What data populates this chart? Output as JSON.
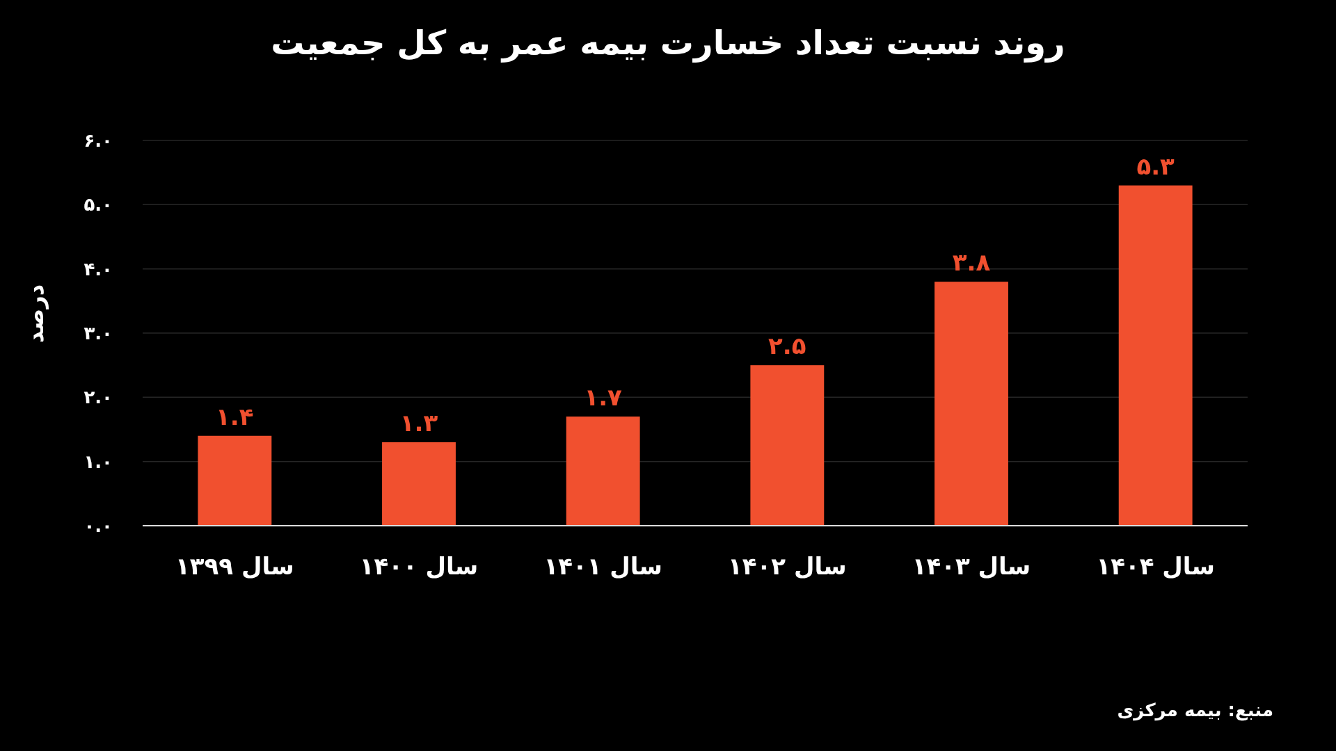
{
  "chart_data": {
    "type": "bar",
    "title": "روند نسبت تعداد خسارت بیمه عمر به کل جمعیت",
    "ylabel": "درصد",
    "categories": [
      "سال ۱۳۹۹",
      "سال ۱۴۰۰",
      "سال ۱۴۰۱",
      "سال ۱۴۰۲",
      "سال ۱۴۰۳",
      "سال ۱۴۰۴"
    ],
    "values": [
      1.4,
      1.3,
      1.7,
      2.5,
      3.8,
      5.3
    ],
    "value_labels": [
      "۱.۴",
      "۱.۳",
      "۱.۷",
      "۲.۵",
      "۳.۸",
      "۵.۳"
    ],
    "color": "#f1502f",
    "ylim": [
      0,
      6
    ],
    "yticks": [
      {
        "value": 0,
        "label": "۰.۰"
      },
      {
        "value": 1,
        "label": "۱.۰"
      },
      {
        "value": 2,
        "label": "۲.۰"
      },
      {
        "value": 3,
        "label": "۳.۰"
      },
      {
        "value": 4,
        "label": "۴.۰"
      },
      {
        "value": 5,
        "label": "۵.۰"
      },
      {
        "value": 6,
        "label": "۶.۰"
      }
    ],
    "grid": "y",
    "annotations": [
      "منبع: بیمه مرکزی"
    ]
  }
}
